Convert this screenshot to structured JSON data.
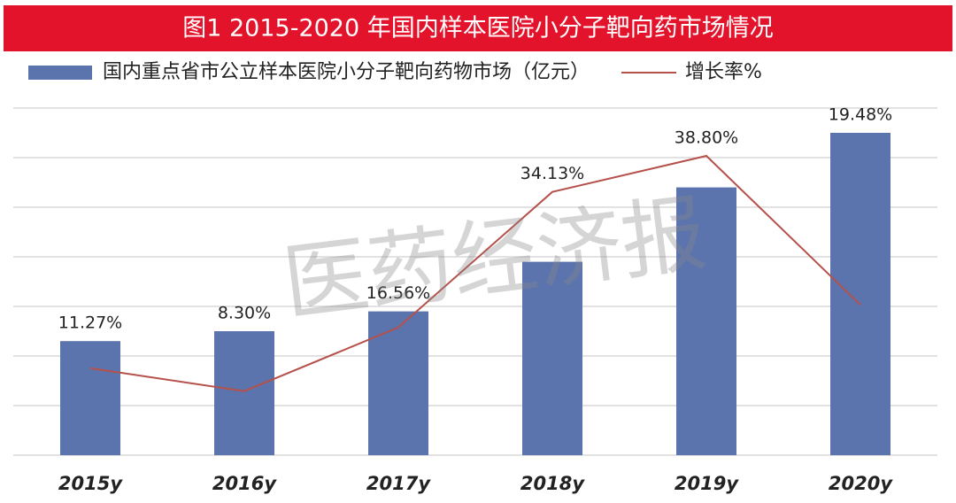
{
  "chart_data": {
    "type": "bar",
    "title": "图1 2015-2020 年国内样本医院小分子靶向药市场情况",
    "watermark": "医药经济报",
    "categories": [
      "2015y",
      "2016y",
      "2017y",
      "2018y",
      "2019y",
      "2020y"
    ],
    "series": [
      {
        "name": "国内重点省市公立样本医院小分子靶向药物市场（亿元）",
        "color": "#5b74ae",
        "type": "bar",
        "values": [
          2.3,
          2.5,
          2.9,
          3.9,
          5.4,
          6.5
        ]
      },
      {
        "name": "增长率%",
        "color": "#b5504a",
        "type": "line",
        "axis": "y2",
        "values": [
          11.27,
          8.3,
          16.56,
          34.13,
          38.8,
          19.48
        ],
        "value_labels": [
          "11.27%",
          "8.30%",
          "16.56%",
          "34.13%",
          "38.80%",
          "19.48%"
        ]
      }
    ],
    "ylim": [
      0,
      7
    ],
    "yticks": [
      0,
      1,
      2,
      3,
      4,
      5,
      6,
      7
    ],
    "y2lim": [
      0,
      45
    ],
    "grid": true
  }
}
